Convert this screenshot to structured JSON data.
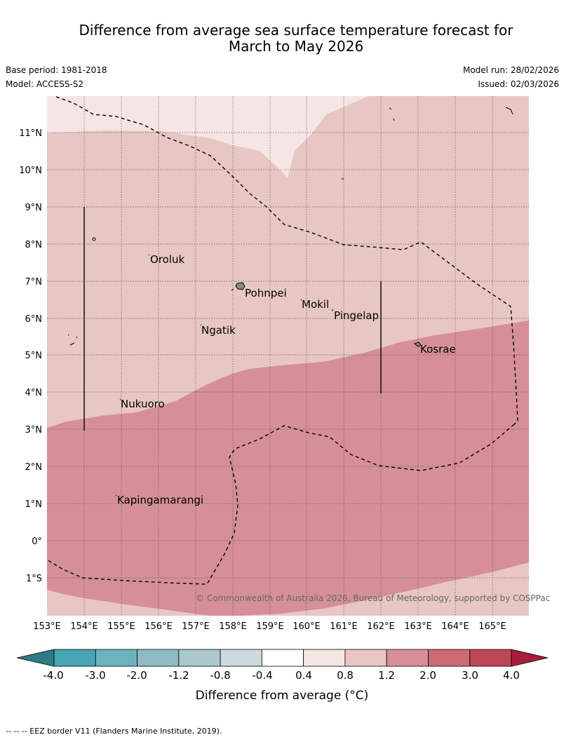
{
  "title": {
    "line1": "Difference from average sea surface temperature forecast for",
    "line2": "March to May 2026"
  },
  "meta": {
    "base_period": "Base period: 1981-2018",
    "model": "Model: ACCESS-S2",
    "model_run": "Model run: 28/02/2026",
    "issued": "Issued: 02/03/2026"
  },
  "map": {
    "lon_labels": [
      "153°E",
      "154°E",
      "155°E",
      "156°E",
      "157°E",
      "158°E",
      "159°E",
      "160°E",
      "161°E",
      "162°E",
      "163°E",
      "164°E",
      "165°E"
    ],
    "lat_labels": [
      "11°N",
      "10°N",
      "9°N",
      "8°N",
      "7°N",
      "6°N",
      "5°N",
      "4°N",
      "3°N",
      "2°N",
      "1°N",
      "0°",
      "1°S"
    ],
    "places": [
      {
        "name": "Oroluk"
      },
      {
        "name": "Pohnpei"
      },
      {
        "name": "Mokil"
      },
      {
        "name": "Pingelap"
      },
      {
        "name": "Ngatik"
      },
      {
        "name": "Kosrae"
      },
      {
        "name": "Nukuoro"
      },
      {
        "name": "Kapingamarangi"
      }
    ],
    "copyright": "© Commonwealth of Australia 2026, Bureau of Meteorology, supported by COSPPac",
    "colors": {
      "band_0_4_0_8": "#f5e6e5",
      "band_0_8_1_2": "#e8c7c2",
      "band_1_2_2_0": "#d68f97"
    }
  },
  "colorbar": {
    "ticks": [
      "-4.0",
      "-3.0",
      "-2.0",
      "-1.2",
      "-0.8",
      "-0.4",
      "0.4",
      "0.8",
      "1.2",
      "2.0",
      "3.0",
      "4.0"
    ],
    "colors": [
      "#2e7a85",
      "#47a4b3",
      "#6cb3c0",
      "#8fbac4",
      "#abc9cc",
      "#cddadd",
      "#ffffff",
      "#f5e6e5",
      "#e8c7c2",
      "#d68f97",
      "#cc6a76",
      "#be4657",
      "#a81e3c"
    ],
    "label": "Difference from average (°C)"
  },
  "footer": "--  --  -- EEZ border V11 (Flanders Marine Institute, 2019)."
}
